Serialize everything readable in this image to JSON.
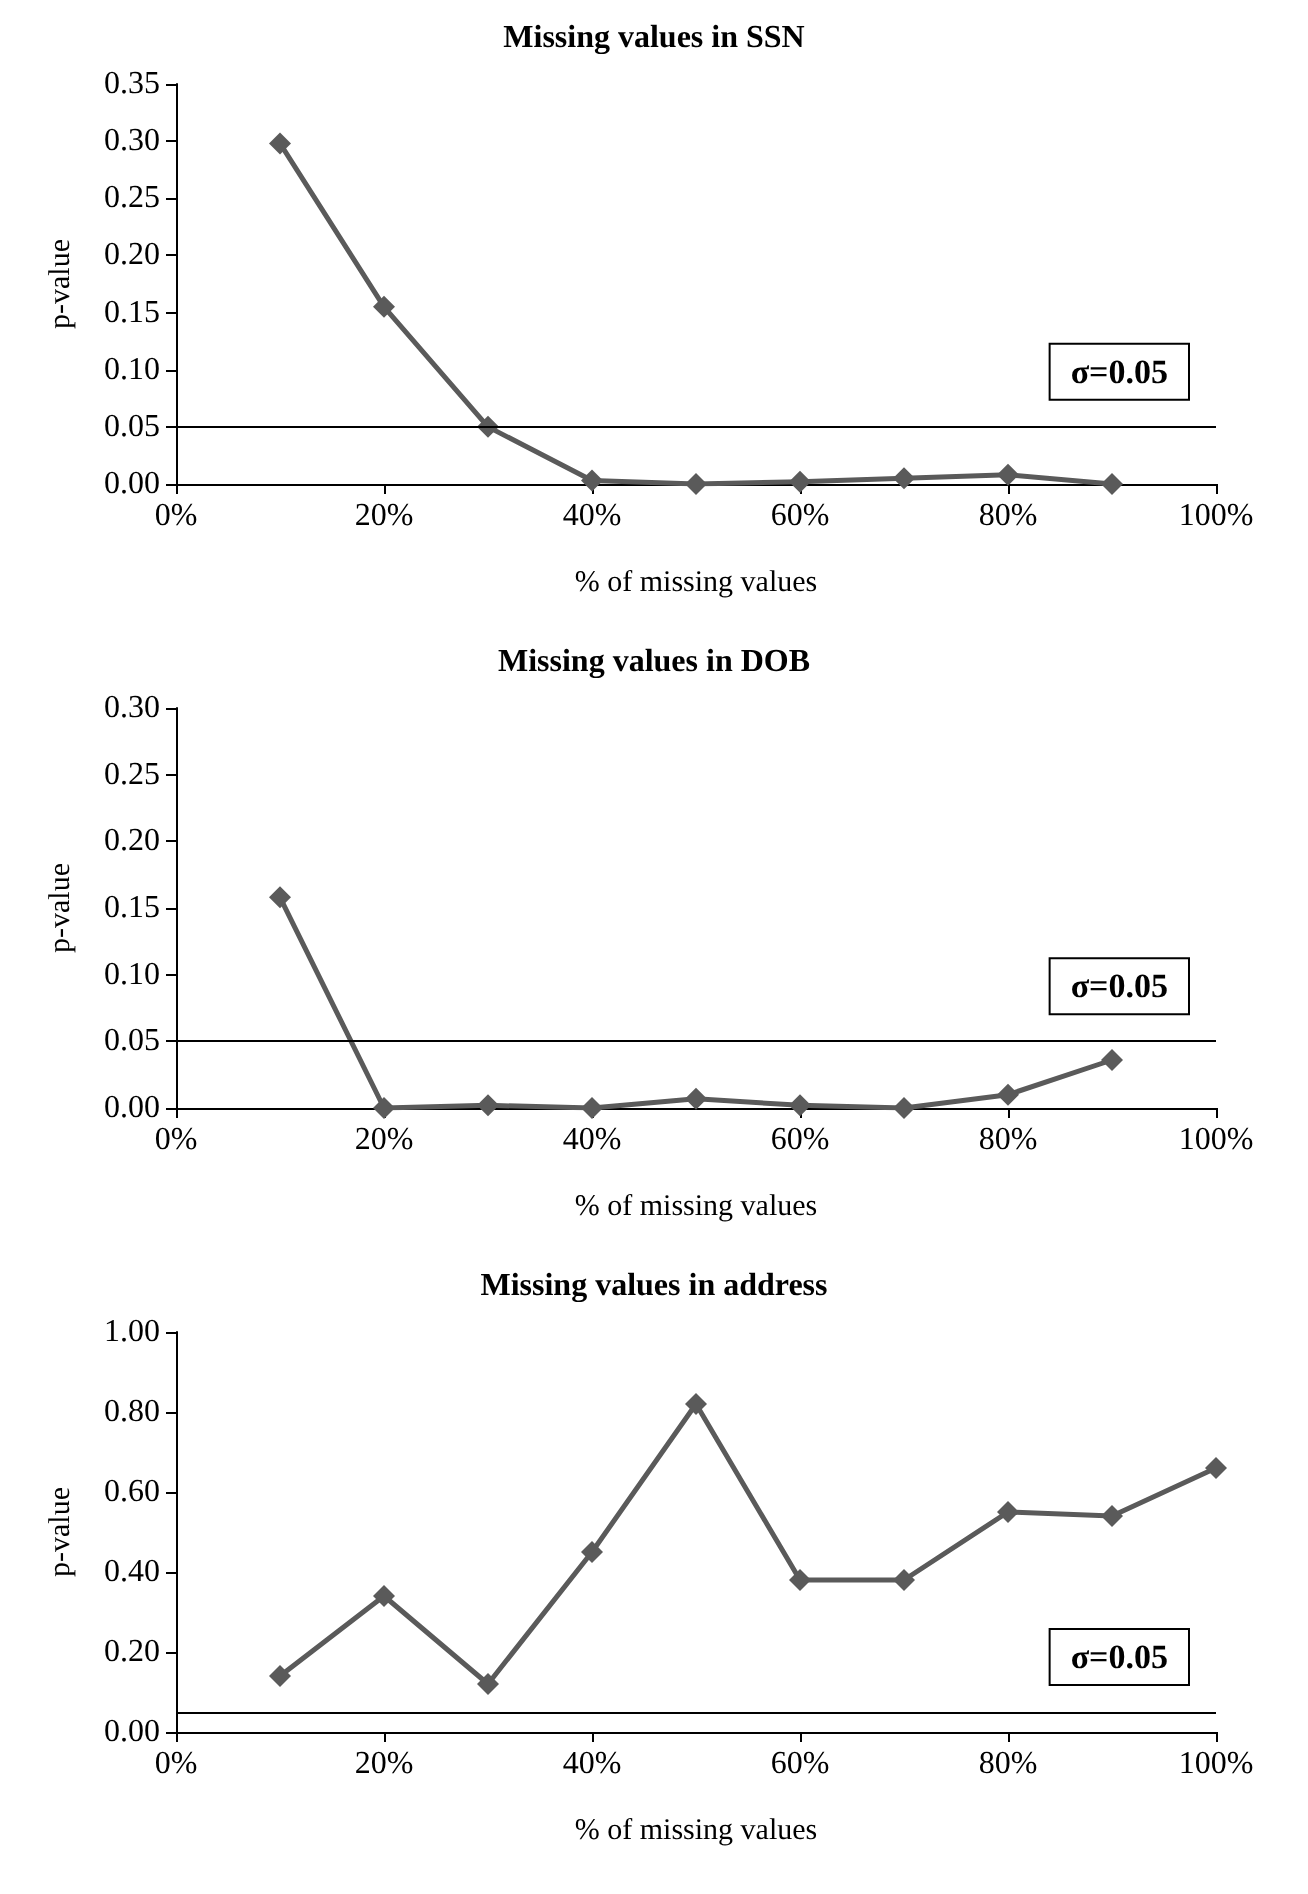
{
  "chart_data": [
    {
      "type": "line",
      "title": "Missing values in SSN",
      "xlabel": "% of missing values",
      "ylabel": "p-value",
      "marker": "diamond",
      "grid": false,
      "x": [
        10,
        20,
        30,
        40,
        50,
        60,
        70,
        80,
        90
      ],
      "series": [
        {
          "color": "#5a5a5a",
          "values": [
            0.298,
            0.155,
            0.05,
            0.003,
            0,
            0.002,
            0.005,
            0.008,
            0
          ]
        }
      ],
      "xlim": [
        0,
        100
      ],
      "xticks": [
        {
          "value": 0,
          "label": "0%"
        },
        {
          "value": 20,
          "label": "20%"
        },
        {
          "value": 40,
          "label": "40%"
        },
        {
          "value": 60,
          "label": "60%"
        },
        {
          "value": 80,
          "label": "80%"
        },
        {
          "value": 100,
          "label": "100%"
        }
      ],
      "ylim": [
        0,
        0.35
      ],
      "yticks": [
        {
          "value": 0,
          "label": "0.00"
        },
        {
          "value": 0.05,
          "label": "0.05"
        },
        {
          "value": 0.1,
          "label": "0.10"
        },
        {
          "value": 0.15,
          "label": "0.15"
        },
        {
          "value": 0.2,
          "label": "0.20"
        },
        {
          "value": 0.25,
          "label": "0.25"
        },
        {
          "value": 0.3,
          "label": "0.30"
        },
        {
          "value": 0.35,
          "label": "0.35"
        }
      ],
      "ref_lines": [
        {
          "axis": "y",
          "value": 0.05,
          "label": "σ=0.05",
          "color": "#000000"
        }
      ]
    },
    {
      "type": "line",
      "title": "Missing values in DOB",
      "xlabel": "% of missing values",
      "ylabel": "p-value",
      "marker": "diamond",
      "grid": false,
      "x": [
        10,
        20,
        30,
        40,
        50,
        60,
        70,
        80,
        90
      ],
      "series": [
        {
          "color": "#5a5a5a",
          "values": [
            0.158,
            0,
            0.002,
            0,
            0.007,
            0.002,
            0,
            0.01,
            0.036
          ]
        }
      ],
      "xlim": [
        0,
        100
      ],
      "xticks": [
        {
          "value": 0,
          "label": "0%"
        },
        {
          "value": 20,
          "label": "20%"
        },
        {
          "value": 40,
          "label": "40%"
        },
        {
          "value": 60,
          "label": "60%"
        },
        {
          "value": 80,
          "label": "80%"
        },
        {
          "value": 100,
          "label": "100%"
        }
      ],
      "ylim": [
        0,
        0.3
      ],
      "yticks": [
        {
          "value": 0,
          "label": "0.00"
        },
        {
          "value": 0.05,
          "label": "0.05"
        },
        {
          "value": 0.1,
          "label": "0.10"
        },
        {
          "value": 0.15,
          "label": "0.15"
        },
        {
          "value": 0.2,
          "label": "0.20"
        },
        {
          "value": 0.25,
          "label": "0.25"
        },
        {
          "value": 0.3,
          "label": "0.30"
        }
      ],
      "ref_lines": [
        {
          "axis": "y",
          "value": 0.05,
          "label": "σ=0.05",
          "color": "#000000"
        }
      ]
    },
    {
      "type": "line",
      "title": "Missing values in address",
      "xlabel": "% of missing values",
      "ylabel": "p-value",
      "marker": "diamond",
      "grid": false,
      "x": [
        10,
        20,
        30,
        40,
        50,
        60,
        70,
        80,
        90,
        100
      ],
      "series": [
        {
          "color": "#5a5a5a",
          "values": [
            0.14,
            0.34,
            0.12,
            0.45,
            0.82,
            0.38,
            0.38,
            0.55,
            0.54,
            0.66
          ]
        }
      ],
      "xlim": [
        0,
        100
      ],
      "xticks": [
        {
          "value": 0,
          "label": "0%"
        },
        {
          "value": 20,
          "label": "20%"
        },
        {
          "value": 40,
          "label": "40%"
        },
        {
          "value": 60,
          "label": "60%"
        },
        {
          "value": 80,
          "label": "80%"
        },
        {
          "value": 100,
          "label": "100%"
        }
      ],
      "ylim": [
        0,
        1
      ],
      "yticks": [
        {
          "value": 0,
          "label": "0.00"
        },
        {
          "value": 0.2,
          "label": "0.20"
        },
        {
          "value": 0.4,
          "label": "0.40"
        },
        {
          "value": 0.6,
          "label": "0.60"
        },
        {
          "value": 0.8,
          "label": "0.80"
        },
        {
          "value": 1,
          "label": "1.00"
        }
      ],
      "ref_lines": [
        {
          "axis": "y",
          "value": 0.05,
          "label": "σ=0.05",
          "color": "#000000"
        }
      ]
    }
  ]
}
